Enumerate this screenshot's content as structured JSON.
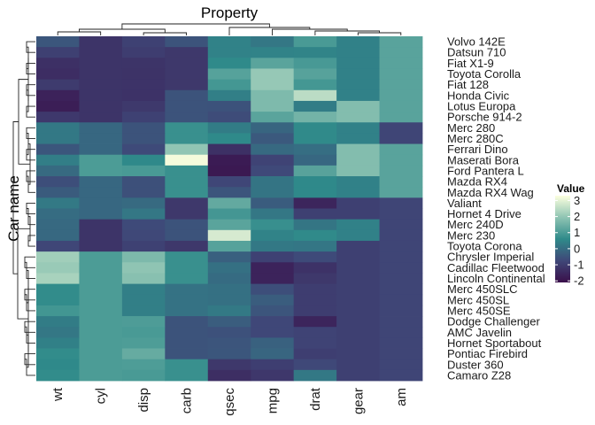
{
  "chart_data": {
    "type": "heatmap",
    "title": "",
    "xlabel": "Property",
    "ylabel": "Car name",
    "columns": [
      "wt",
      "cyl",
      "disp",
      "carb",
      "qsec",
      "mpg",
      "drat",
      "gear",
      "am"
    ],
    "rows": [
      "Volvo 142E",
      "Datsun 710",
      "Fiat X1-9",
      "Toyota Corolla",
      "Fiat 128",
      "Honda Civic",
      "Lotus Europa",
      "Porsche 914-2",
      "Merc 280",
      "Merc 280C",
      "Ferrari Dino",
      "Maserati Bora",
      "Ford Pantera L",
      "Mazda RX4",
      "Mazda RX4 Wag",
      "Valiant",
      "Hornet 4 Drive",
      "Merc 240D",
      "Merc 230",
      "Toyota Corona",
      "Chrysler Imperial",
      "Cadillac Fleetwood",
      "Lincoln Continental",
      "Merc 450SLC",
      "Merc 450SL",
      "Merc 450SE",
      "Dodge Challenger",
      "AMC Javelin",
      "Hornet Sportabout",
      "Pontiac Firebird",
      "Duster 360",
      "Camaro Z28"
    ],
    "values": [
      [
        -0.45,
        -1.22,
        -0.89,
        -0.5,
        0.43,
        0.22,
        0.97,
        0.42,
        1.19
      ],
      [
        -0.92,
        -1.22,
        -0.99,
        -1.12,
        0.43,
        0.45,
        0.47,
        0.42,
        1.19
      ],
      [
        -1.31,
        -1.22,
        -1.22,
        -1.12,
        0.59,
        1.2,
        0.95,
        0.42,
        1.19
      ],
      [
        -1.38,
        -1.22,
        -1.24,
        -1.12,
        1.15,
        2.04,
        1.16,
        0.42,
        1.19
      ],
      [
        -1.04,
        -1.22,
        -1.23,
        -1.12,
        0.9,
        2.04,
        0.9,
        0.42,
        1.19
      ],
      [
        -1.64,
        -1.22,
        -1.25,
        -0.5,
        0.38,
        1.71,
        2.49,
        0.42,
        1.19
      ],
      [
        -1.74,
        -1.22,
        -1.09,
        -0.5,
        -0.53,
        1.71,
        0.32,
        1.78,
        1.19
      ],
      [
        -1.1,
        -1.22,
        -0.89,
        -0.5,
        -0.64,
        1.2,
        1.56,
        1.78,
        1.19
      ],
      [
        0.23,
        -0.1,
        -0.51,
        0.74,
        0.32,
        -0.15,
        0.61,
        0.42,
        -0.81
      ],
      [
        0.23,
        -0.1,
        -0.51,
        0.74,
        0.59,
        -0.38,
        0.61,
        0.42,
        -0.81
      ],
      [
        -0.45,
        -0.1,
        -0.69,
        1.98,
        -1.31,
        -0.06,
        0.04,
        1.78,
        1.19
      ],
      [
        0.36,
        1.01,
        0.57,
        3.21,
        -1.82,
        -0.84,
        -0.11,
        1.78,
        1.19
      ],
      [
        -0.05,
        1.01,
        0.97,
        0.74,
        -1.87,
        -0.71,
        1.17,
        1.78,
        1.19
      ],
      [
        -0.61,
        -0.1,
        -0.57,
        0.74,
        -0.78,
        0.15,
        0.57,
        0.42,
        1.19
      ],
      [
        -0.35,
        -0.1,
        -0.57,
        0.74,
        -0.46,
        0.15,
        0.57,
        0.42,
        1.19
      ],
      [
        0.25,
        -0.1,
        -0.05,
        -1.12,
        1.33,
        -0.33,
        -1.56,
        -0.93,
        -0.81
      ],
      [
        -0.0,
        -0.1,
        0.22,
        -1.12,
        0.89,
        0.22,
        -0.93,
        -0.93,
        -0.81
      ],
      [
        -0.07,
        -1.22,
        -0.68,
        -0.5,
        1.2,
        0.72,
        0.17,
        0.42,
        -0.81
      ],
      [
        -0.09,
        -1.22,
        -0.73,
        -0.5,
        2.83,
        0.45,
        0.61,
        0.42,
        -0.81
      ],
      [
        -0.77,
        -1.22,
        -0.89,
        -1.12,
        1.15,
        0.23,
        0.19,
        -0.93,
        -0.81
      ],
      [
        2.17,
        1.01,
        1.69,
        0.74,
        -0.24,
        -0.89,
        -0.69,
        -0.93,
        -0.81
      ],
      [
        2.08,
        1.01,
        1.95,
        0.74,
        0.07,
        -1.61,
        -1.25,
        -0.93,
        -0.81
      ],
      [
        2.26,
        1.01,
        1.85,
        0.74,
        -0.02,
        -1.61,
        -1.12,
        -0.93,
        -0.81
      ],
      [
        0.64,
        1.01,
        0.37,
        0.12,
        0.08,
        -0.61,
        -0.98,
        -0.93,
        -0.81
      ],
      [
        0.64,
        1.01,
        0.37,
        0.12,
        0.08,
        -0.31,
        -0.98,
        -0.93,
        -0.81
      ],
      [
        0.87,
        1.01,
        0.37,
        0.12,
        0.25,
        -0.46,
        -0.98,
        -0.93,
        -0.81
      ],
      [
        0.31,
        1.01,
        1.03,
        -0.5,
        -0.31,
        -0.76,
        -1.56,
        -0.93,
        -0.81
      ],
      [
        0.22,
        1.01,
        0.97,
        -0.5,
        -0.54,
        -0.76,
        -0.84,
        -0.93,
        -0.81
      ],
      [
        0.4,
        1.01,
        1.04,
        -0.5,
        -0.47,
        -0.23,
        -0.84,
        -0.93,
        -0.81
      ],
      [
        0.64,
        1.01,
        1.37,
        -0.5,
        -0.45,
        -0.15,
        -0.97,
        -0.93,
        -0.81
      ],
      [
        0.57,
        1.01,
        1.04,
        0.74,
        -1.12,
        -0.96,
        -0.72,
        -0.93,
        -0.81
      ],
      [
        0.64,
        1.01,
        0.97,
        0.74,
        -1.36,
        -1.13,
        0.24,
        -0.93,
        -0.81
      ]
    ],
    "legend": {
      "title": "Value",
      "ticks": [
        3,
        2,
        1,
        0,
        -1,
        -2
      ],
      "tick_labels": [
        "3",
        "2",
        "1",
        "0",
        "-1",
        "-2"
      ],
      "range": [
        -2.1,
        3.3
      ],
      "placement": "right"
    },
    "color_scale": [
      "#3a0f4a",
      "#3f4778",
      "#2f8a8a",
      "#8fc4b3",
      "#fcffdf"
    ],
    "dendrograms": {
      "rows": true,
      "columns": true
    }
  }
}
